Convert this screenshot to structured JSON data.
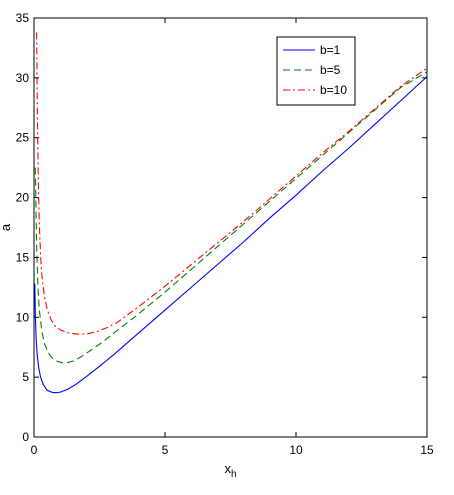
{
  "chart_data": {
    "type": "line",
    "title": "",
    "xlabel": "x",
    "xlabel_subscript": "h",
    "ylabel": "a",
    "xlim": [
      0,
      15
    ],
    "ylim": [
      0,
      35
    ],
    "xticks": [
      0,
      5,
      10,
      15
    ],
    "yticks": [
      0,
      5,
      10,
      15,
      20,
      25,
      30,
      35
    ],
    "grid": false,
    "legend_position": "top-right",
    "series": [
      {
        "name": "b=1",
        "color": "#0000ff",
        "dash": "solid",
        "x": [
          0.03,
          0.05,
          0.08,
          0.12,
          0.18,
          0.25,
          0.35,
          0.5,
          0.7,
          0.85,
          1.0,
          1.3,
          1.6,
          2.0,
          2.5,
          3.0,
          4.0,
          5.0,
          6.0,
          7.0,
          8.0,
          9.0,
          10.0,
          11.0,
          12.0,
          13.0,
          14.0,
          15.0
        ],
        "y": [
          12.8,
          10.2,
          8.3,
          6.9,
          5.8,
          5.0,
          4.4,
          3.9,
          3.72,
          3.7,
          3.75,
          4.0,
          4.4,
          5.05,
          5.9,
          6.8,
          8.7,
          10.6,
          12.5,
          14.4,
          16.3,
          18.3,
          20.2,
          22.2,
          24.1,
          26.1,
          28.1,
          30.1
        ]
      },
      {
        "name": "b=5",
        "color": "#008000",
        "dash": "dashed",
        "x": [
          0.05,
          0.1,
          0.15,
          0.2,
          0.3,
          0.4,
          0.55,
          0.7,
          0.9,
          1.1,
          1.3,
          1.5,
          1.8,
          2.2,
          2.6,
          3.0,
          4.0,
          5.0,
          6.0,
          7.0,
          8.0,
          9.0,
          10.0,
          11.0,
          12.0,
          13.0,
          14.0,
          15.0
        ],
        "y": [
          22.5,
          16.0,
          12.6,
          10.7,
          8.8,
          7.8,
          7.0,
          6.6,
          6.3,
          6.2,
          6.22,
          6.35,
          6.7,
          7.3,
          7.9,
          8.6,
          10.3,
          12.1,
          14.0,
          15.9,
          17.8,
          19.7,
          21.6,
          23.5,
          25.4,
          27.3,
          29.2,
          30.5
        ]
      },
      {
        "name": "b=10",
        "color": "#ff0000",
        "dash": "dashdot",
        "x": [
          0.1,
          0.13,
          0.16,
          0.2,
          0.25,
          0.3,
          0.4,
          0.5,
          0.65,
          0.8,
          1.0,
          1.3,
          1.6,
          2.0,
          2.4,
          2.8,
          3.2,
          4.0,
          5.0,
          6.0,
          7.0,
          8.0,
          9.0,
          10.0,
          11.0,
          12.0,
          13.0,
          14.0,
          15.0
        ],
        "y": [
          33.8,
          26.5,
          22.0,
          18.0,
          15.2,
          13.5,
          11.7,
          10.7,
          9.8,
          9.3,
          8.95,
          8.7,
          8.6,
          8.6,
          8.8,
          9.15,
          9.6,
          10.9,
          12.6,
          14.4,
          16.2,
          18.0,
          19.9,
          21.8,
          23.7,
          25.5,
          27.4,
          29.3,
          30.8
        ]
      }
    ]
  }
}
